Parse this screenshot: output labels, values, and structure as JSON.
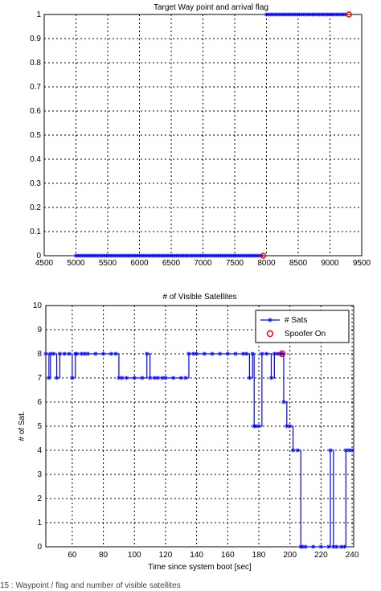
{
  "caption": "15 : Waypoint / flag and number of visible satellites",
  "colors": {
    "series": "#0000ff",
    "spoof": "#ff0000",
    "grid": "#000000"
  },
  "chart_data": [
    {
      "type": "scatter",
      "title": "Target Way point and arrival flag",
      "xlabel": "",
      "ylabel": "",
      "xlim": [
        4500,
        9500
      ],
      "ylim": [
        0,
        1
      ],
      "grid": true,
      "xticks": [
        "4500",
        "5000",
        "5500",
        "6000",
        "6500",
        "7000",
        "7500",
        "8000",
        "8500",
        "9000",
        "9500"
      ],
      "yticks": [
        "0",
        "0.1",
        "0.2",
        "0.3",
        "0.4",
        "0.5",
        "0.6",
        "0.7",
        "0.8",
        "0.9",
        "1"
      ],
      "series": [
        {
          "values_x_start": 5000,
          "values_x_end": 7950,
          "y": 0,
          "step": 40
        },
        {
          "values_x_start": 8000,
          "values_x_end": 9250,
          "y": 1,
          "step": 40
        }
      ],
      "spoofer_points": [
        {
          "x": 7950,
          "y": 0
        },
        {
          "x": 9300,
          "y": 1
        }
      ]
    },
    {
      "type": "line",
      "title": "# of Visible Satellites",
      "xlabel": "Time since system boot [sec]",
      "ylabel": "# of Sat.",
      "xlim": [
        43,
        241
      ],
      "ylim": [
        0,
        10
      ],
      "grid": true,
      "legend_position": "top-right",
      "xticks": [
        "60",
        "80",
        "100",
        "120",
        "140",
        "160",
        "180",
        "200",
        "220",
        "240"
      ],
      "yticks": [
        "0",
        "1",
        "2",
        "3",
        "4",
        "5",
        "6",
        "7",
        "8",
        "9",
        "10"
      ],
      "series": [
        {
          "name": "# Sats",
          "x": [
            43,
            45,
            46,
            48,
            50,
            52,
            55,
            58,
            60,
            62,
            63,
            66,
            68,
            70,
            75,
            80,
            85,
            88,
            90,
            92,
            95,
            100,
            105,
            108,
            110,
            113,
            115,
            118,
            120,
            125,
            130,
            133,
            135,
            138,
            140,
            145,
            150,
            155,
            160,
            165,
            170,
            172,
            174,
            176,
            177,
            178,
            180,
            182,
            185,
            188,
            190,
            192,
            194,
            195,
            196,
            198,
            200,
            202,
            205,
            207,
            208,
            210,
            215,
            220,
            225,
            226,
            228,
            230,
            233,
            235,
            236,
            238,
            240
          ],
          "y": [
            8,
            7,
            8,
            8,
            7,
            8,
            8,
            8,
            7,
            8,
            8,
            8,
            8,
            8,
            8,
            8,
            8,
            8,
            7,
            7,
            7,
            7,
            7,
            8,
            7,
            7,
            7,
            7,
            7,
            7,
            7,
            7,
            8,
            8,
            8,
            8,
            8,
            8,
            8,
            8,
            8,
            8,
            7,
            8,
            5,
            5,
            5,
            8,
            8,
            7,
            8,
            8,
            8,
            8,
            6,
            5,
            5,
            4,
            4,
            0,
            0,
            0,
            0,
            0,
            0,
            4,
            0,
            0,
            0,
            0,
            4,
            4,
            4
          ]
        }
      ],
      "spoofer_on": {
        "name": "Spoofer On",
        "x": 195,
        "y": 8
      }
    }
  ]
}
